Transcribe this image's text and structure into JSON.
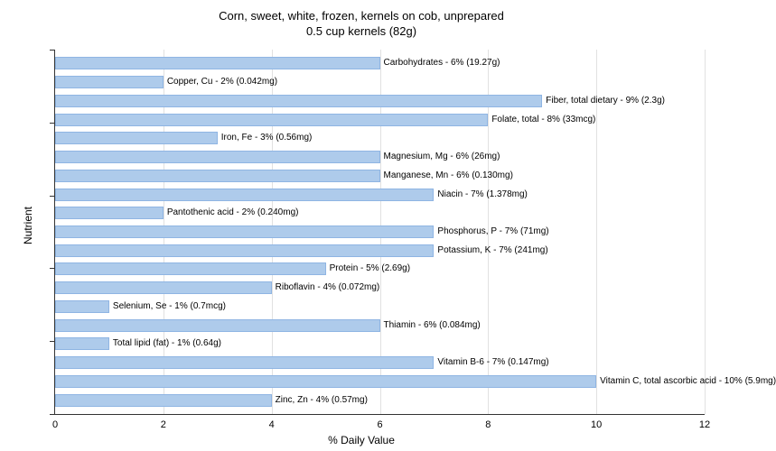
{
  "chart": {
    "type": "bar",
    "title_line1": "Corn, sweet, white, frozen, kernels on cob, unprepared",
    "title_line2": "0.5 cup kernels (82g)",
    "title_fontsize": 13,
    "xlabel": "% Daily Value",
    "ylabel": "Nutrient",
    "label_fontsize": 12,
    "xlim": [
      0,
      12
    ],
    "xtick_step": 2,
    "xticks": [
      0,
      2,
      4,
      6,
      8,
      10,
      12
    ],
    "background_color": "#ffffff",
    "bar_color": "#aecbeb",
    "bar_border_color": "#8fb5e3",
    "grid_color": "#333333",
    "bar_label_fontsize": 10,
    "tick_label_fontsize": 11,
    "bars": [
      {
        "label": "Carbohydrates - 6% (19.27g)",
        "value": 6
      },
      {
        "label": "Copper, Cu - 2% (0.042mg)",
        "value": 2
      },
      {
        "label": "Fiber, total dietary - 9% (2.3g)",
        "value": 9
      },
      {
        "label": "Folate, total - 8% (33mcg)",
        "value": 8
      },
      {
        "label": "Iron, Fe - 3% (0.56mg)",
        "value": 3
      },
      {
        "label": "Magnesium, Mg - 6% (26mg)",
        "value": 6
      },
      {
        "label": "Manganese, Mn - 6% (0.130mg)",
        "value": 6
      },
      {
        "label": "Niacin - 7% (1.378mg)",
        "value": 7
      },
      {
        "label": "Pantothenic acid - 2% (0.240mg)",
        "value": 2
      },
      {
        "label": "Phosphorus, P - 7% (71mg)",
        "value": 7
      },
      {
        "label": "Potassium, K - 7% (241mg)",
        "value": 7
      },
      {
        "label": "Protein - 5% (2.69g)",
        "value": 5
      },
      {
        "label": "Riboflavin - 4% (0.072mg)",
        "value": 4
      },
      {
        "label": "Selenium, Se - 1% (0.7mcg)",
        "value": 1
      },
      {
        "label": "Thiamin - 6% (0.084mg)",
        "value": 6
      },
      {
        "label": "Total lipid (fat) - 1% (0.64g)",
        "value": 1
      },
      {
        "label": "Vitamin B-6 - 7% (0.147mg)",
        "value": 7
      },
      {
        "label": "Vitamin C, total ascorbic acid - 10% (5.9mg)",
        "value": 10
      },
      {
        "label": "Zinc, Zn - 4% (0.57mg)",
        "value": 4
      }
    ],
    "y_tick_groups": 5
  }
}
